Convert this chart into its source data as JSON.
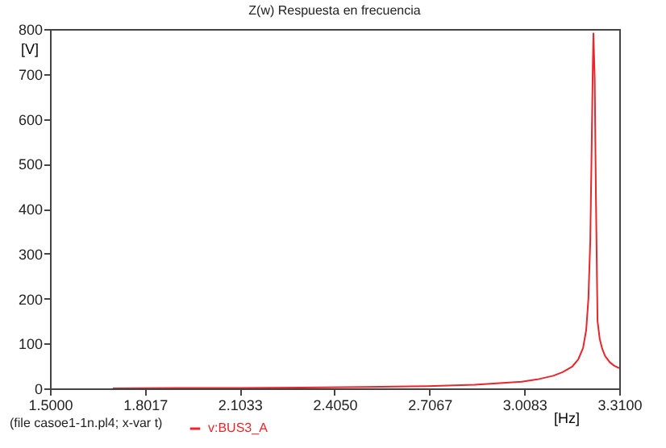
{
  "chart_data": {
    "type": "line",
    "title": "Z(w) Respuesta en frecuencia",
    "xlabel": "[Hz]",
    "ylabel": "[V]",
    "annotations": [
      "(file casoe1-1n.pl4; x-var t)"
    ],
    "x": [
      1.7,
      1.9,
      2.1,
      2.3,
      2.5,
      2.7,
      2.85,
      3.0,
      3.05,
      3.1,
      3.13,
      3.16,
      3.18,
      3.195,
      3.205,
      3.212,
      3.218,
      3.222,
      3.226,
      3.228,
      3.232,
      3.236,
      3.241,
      3.248,
      3.256,
      3.265,
      3.28,
      3.295,
      3.31
    ],
    "series": [
      {
        "name": "v:BUS3_A",
        "color": "#e8262b",
        "values": [
          0,
          1,
          1,
          2,
          3,
          5,
          8,
          15,
          20,
          28,
          36,
          48,
          65,
          90,
          130,
          200,
          330,
          520,
          720,
          790,
          690,
          420,
          150,
          110,
          88,
          72,
          58,
          50,
          45
        ]
      }
    ],
    "xlim": [
      1.5,
      3.31
    ],
    "xticks": [
      {
        "value": 1.5,
        "label": "1.5000"
      },
      1.8017,
      2.1033,
      {
        "value": 2.405,
        "label": "2.4050"
      },
      2.7067,
      3.0083,
      {
        "value": 3.31,
        "label": "3.3100"
      }
    ],
    "ylim": [
      0,
      800
    ],
    "yticks": [
      0,
      100,
      200,
      300,
      400,
      500,
      600,
      700,
      800
    ],
    "grid": false,
    "legend": "bottom left",
    "line_style": "solid"
  }
}
